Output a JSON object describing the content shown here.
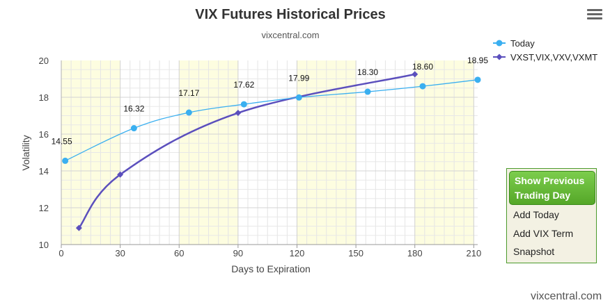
{
  "chart_data": {
    "type": "line",
    "title": "VIX Futures Historical Prices",
    "subtitle": "vixcentral.com",
    "xlabel": "Days to Expiration",
    "ylabel": "Volatility",
    "xlim": [
      0,
      212
    ],
    "ylim": [
      10,
      20
    ],
    "xticks": [
      0,
      30,
      60,
      90,
      120,
      150,
      180,
      210
    ],
    "yticks": [
      10,
      12,
      14,
      16,
      18,
      20
    ],
    "grid": true,
    "legend_position": "top-right",
    "series": [
      {
        "name": "Today",
        "color": "#3aaff0",
        "x": [
          2,
          37,
          65,
          93,
          121,
          156,
          184,
          212
        ],
        "y": [
          14.55,
          16.32,
          17.17,
          17.62,
          17.99,
          18.3,
          18.6,
          18.95
        ],
        "labels": [
          "14.55",
          "16.32",
          "17.17",
          "17.62",
          "17.99",
          "18.30",
          "18.60",
          "18.95"
        ]
      },
      {
        "name": "VXST,VIX,VXV,VXMT",
        "color": "#5b4fbd",
        "x": [
          9,
          30,
          90,
          180
        ],
        "y": [
          10.9,
          13.8,
          17.15,
          19.25
        ]
      }
    ],
    "bands": [
      [
        0,
        30
      ],
      [
        60,
        90
      ],
      [
        120,
        150
      ],
      [
        180,
        210
      ]
    ],
    "band_color": "#fdfde0"
  },
  "menu_icon": "hamburger-menu-icon",
  "panel": {
    "show_previous": "Show Previous Trading Day",
    "add_today": "Add Today",
    "add_vix_term": "Add VIX Term",
    "snapshot": "Snapshot"
  },
  "watermark": "vixcentral.com"
}
